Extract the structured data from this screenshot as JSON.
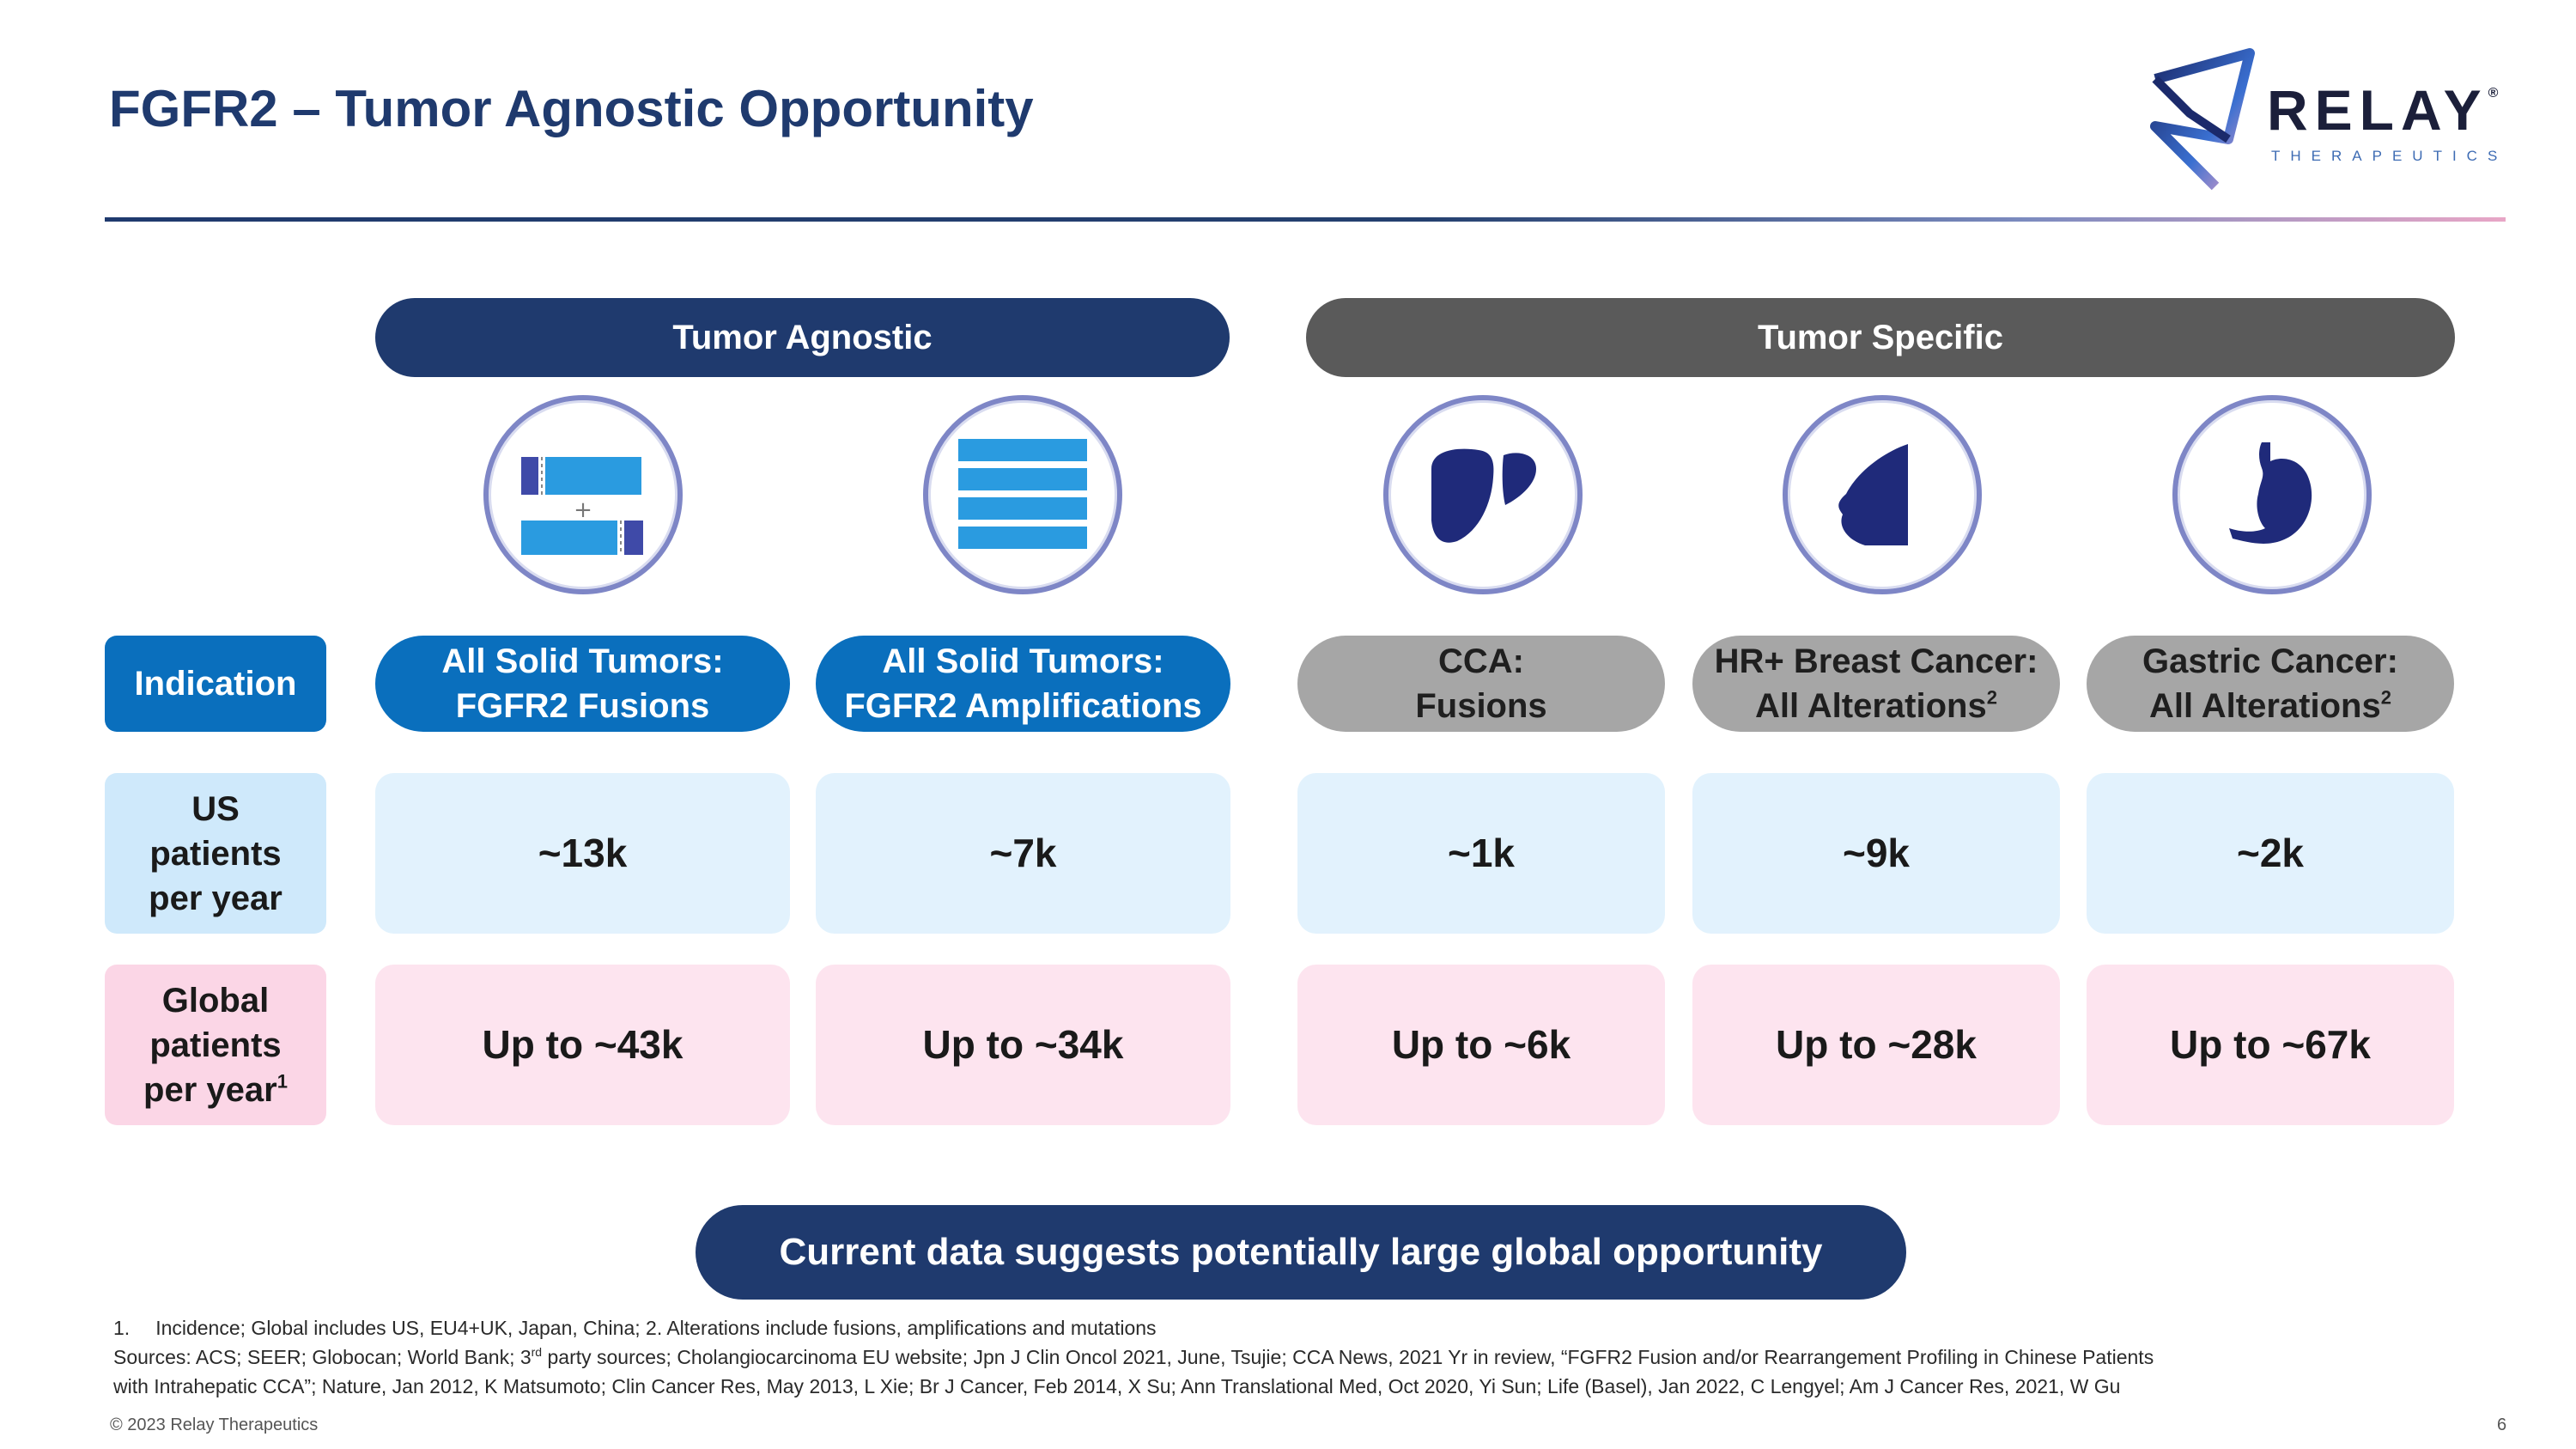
{
  "title": "FGFR2 – Tumor Agnostic Opportunity",
  "logo": {
    "word": "RELAY",
    "reg": "®",
    "sub": "THERAPEUTICS"
  },
  "headers": {
    "agnostic": "Tumor Agnostic",
    "specific": "Tumor Specific"
  },
  "row_labels": {
    "indication": "Indication",
    "us": [
      "US",
      "patients",
      "per year"
    ],
    "global": [
      "Global",
      "patients",
      "per year",
      "1"
    ]
  },
  "columns": [
    {
      "icon": "fusion-icon",
      "ind_line1": "All Solid Tumors:",
      "ind_line2": "FGFR2 Fusions",
      "ind_sup": "",
      "us": "~13k",
      "global": "Up to ~43k"
    },
    {
      "icon": "amplification-icon",
      "plus": "+",
      "ind_line1": "All Solid Tumors:",
      "ind_line2": "FGFR2 Amplifications",
      "ind_sup": "",
      "us": "~7k",
      "global": "Up to ~34k"
    },
    {
      "icon": "liver-icon",
      "ind_line1": "CCA:",
      "ind_line2": "Fusions",
      "ind_sup": "",
      "us": "~1k",
      "global": "Up to ~6k"
    },
    {
      "icon": "breast-icon",
      "ind_line1": "HR+ Breast Cancer:",
      "ind_line2": "All Alterations",
      "ind_sup": "2",
      "us": "~9k",
      "global": "Up to ~28k"
    },
    {
      "icon": "stomach-icon",
      "ind_line1": "Gastric Cancer:",
      "ind_line2": "All Alterations",
      "ind_sup": "2",
      "us": "~2k",
      "global": "Up to ~67k"
    }
  ],
  "fusion_plus": "+",
  "callout": "Current data suggests potentially large global opportunity",
  "footnotes": {
    "line1_num": "1.",
    "line1": "Incidence; Global includes US, EU4+UK, Japan, China;  2. Alterations include fusions, amplifications and mutations",
    "line2_a": "Sources: ACS; SEER; Globocan; World Bank; 3",
    "line2_sup": "rd",
    "line2_b": " party sources; Cholangiocarcinoma EU website; Jpn J Clin Oncol 2021, June, Tsujie; CCA News, 2021 Yr in review, “FGFR2 Fusion and/or Rearrangement Profiling in Chinese Patients",
    "line3": "with Intrahepatic CCA”; Nature, Jan 2012, K Matsumoto; Clin Cancer Res, May 2013, L Xie; Br J Cancer, Feb 2014, X Su; Ann Translational Med, Oct 2020, Yi Sun; Life (Basel), Jan 2022, C Lengyel; Am J Cancer Res, 2021, W Gu"
  },
  "copyright": "© 2023 Relay Therapeutics",
  "page_number": "6",
  "colors": {
    "navy": "#1f3a6e",
    "blue": "#0a6fbd",
    "grey": "#5a5a5a",
    "light_blue": "#e2f2fd",
    "light_pink": "#fde4ef"
  }
}
